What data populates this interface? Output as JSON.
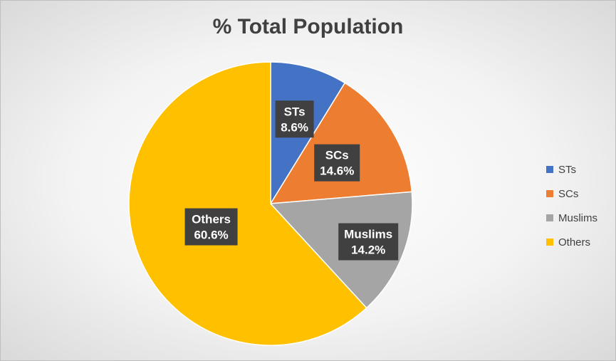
{
  "chart_data": {
    "type": "pie",
    "title": "% Total Population",
    "categories": [
      "STs",
      "SCs",
      "Muslims",
      "Others"
    ],
    "values": [
      8.6,
      14.6,
      14.2,
      60.6
    ],
    "value_labels": [
      "8.6%",
      "14.6%",
      "14.2%",
      "60.6%"
    ],
    "colors": [
      "#4472C4",
      "#ED7D31",
      "#A5A5A5",
      "#FFC000"
    ],
    "start_angle_deg": 0,
    "direction": "clockwise",
    "legend_position": "right",
    "grid": false
  }
}
